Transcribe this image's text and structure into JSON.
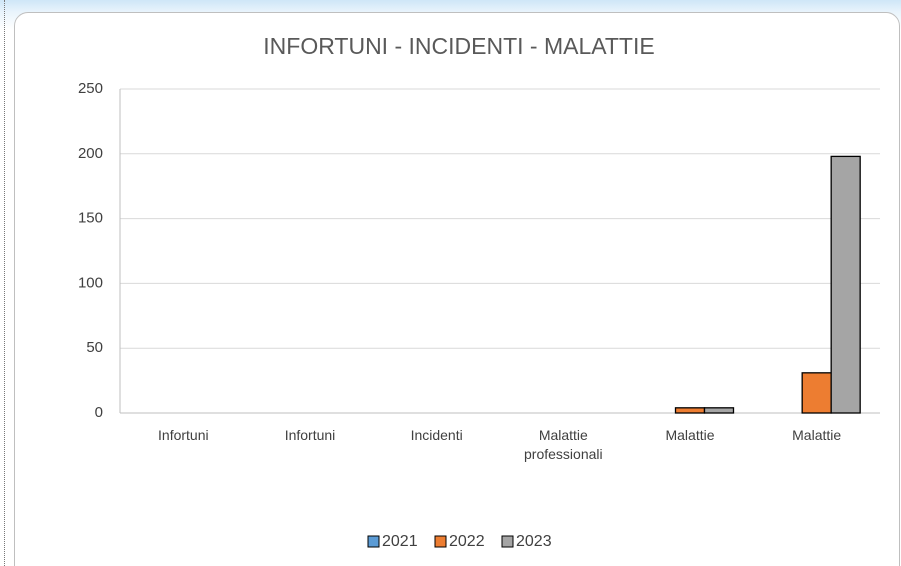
{
  "chart_data": {
    "type": "bar",
    "title": "INFORTUNI - INCIDENTI - MALATTIE",
    "categories": [
      "Infortuni",
      "Infortuni",
      "Incidenti",
      "Malattie professionali",
      "Malattie",
      "Malattie"
    ],
    "series": [
      {
        "name": "2021",
        "color": "#5b9bd5",
        "values": [
          0,
          0,
          0,
          0,
          0,
          0
        ]
      },
      {
        "name": "2022",
        "color": "#ed7d31",
        "values": [
          0,
          0,
          0,
          0,
          4,
          31
        ]
      },
      {
        "name": "2023",
        "color": "#a5a5a5",
        "values": [
          0,
          0,
          0,
          0,
          4,
          198
        ]
      }
    ],
    "ylim": [
      0,
      250
    ],
    "yticks": [
      0,
      50,
      100,
      150,
      200,
      250
    ],
    "grid": true
  }
}
